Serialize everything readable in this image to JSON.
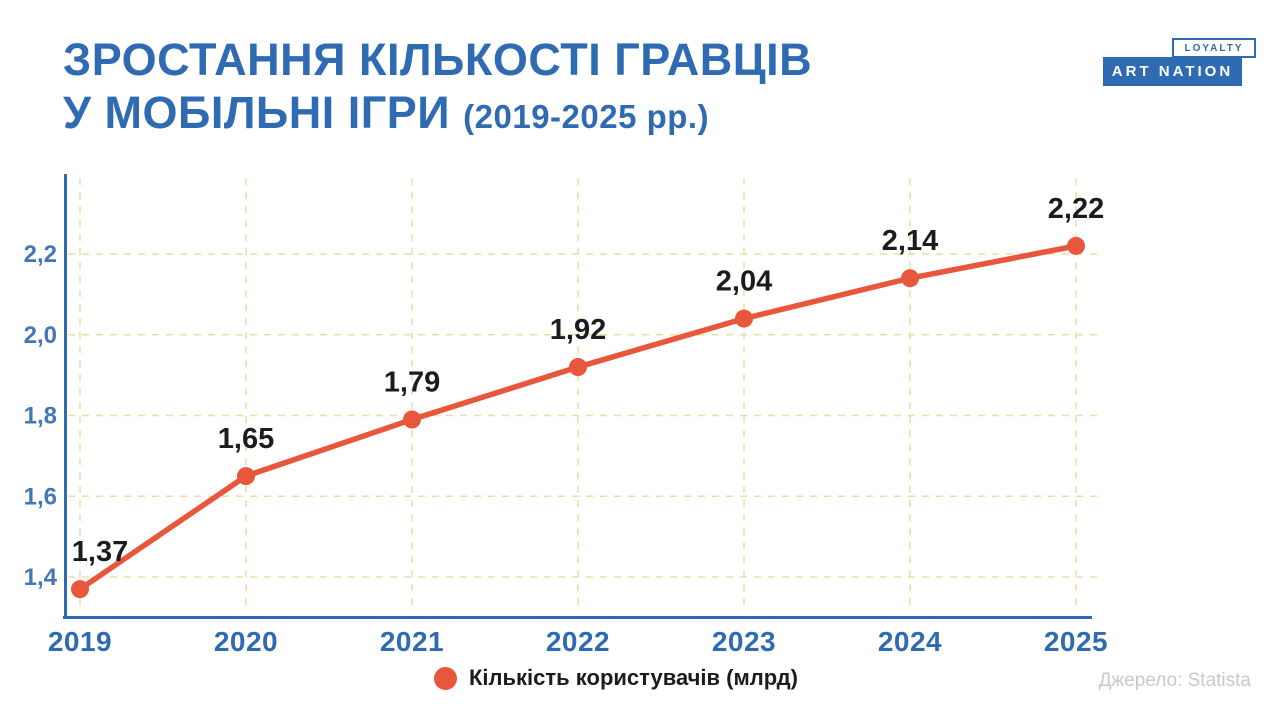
{
  "header": {
    "title_line1": "ЗРОСТАННЯ КІЛЬКОСТІ ГРАВЦІВ",
    "title_line2": "У МОБІЛЬНІ ІГРИ",
    "title_period": "(2019-2025 рр.)"
  },
  "logo": {
    "badge_label": "LOYALTY",
    "brand_label": "ART NATION"
  },
  "chart_data": {
    "type": "line",
    "title": "ЗРОСТАННЯ КІЛЬКОСТІ ГРАВЦІВ У МОБІЛЬНІ ІГРИ (2019-2025 рр.)",
    "categories": [
      "2019",
      "2020",
      "2021",
      "2022",
      "2023",
      "2024",
      "2025"
    ],
    "series": [
      {
        "name": "Кількість користувачів (млрд)",
        "values": [
          1.37,
          1.65,
          1.79,
          1.92,
          2.04,
          2.14,
          2.22
        ]
      }
    ],
    "point_labels": [
      "1,37",
      "1,65",
      "1,79",
      "1,92",
      "2,04",
      "2,14",
      "2,22"
    ],
    "y_ticks": {
      "labels": [
        "1,4",
        "1,6",
        "1,8",
        "2,0",
        "2,2"
      ],
      "values": [
        1.4,
        1.6,
        1.8,
        2.0,
        2.2
      ]
    },
    "ylim": [
      1.3,
      2.35
    ],
    "xlabel": "",
    "ylabel": "",
    "grid": true,
    "legend_position": "bottom"
  },
  "legend": {
    "label": "Кількість користувачів (млрд)"
  },
  "footer": {
    "source": "Джерело: Statista"
  },
  "colors": {
    "accent_blue": "#2F6BB3",
    "tick_blue": "#4576B8",
    "line_orange": "#E8573B",
    "grid_tan": "#EFDCA4",
    "value_label_dark": "#1C1C1E",
    "source_gray": "#C9C9CB"
  }
}
